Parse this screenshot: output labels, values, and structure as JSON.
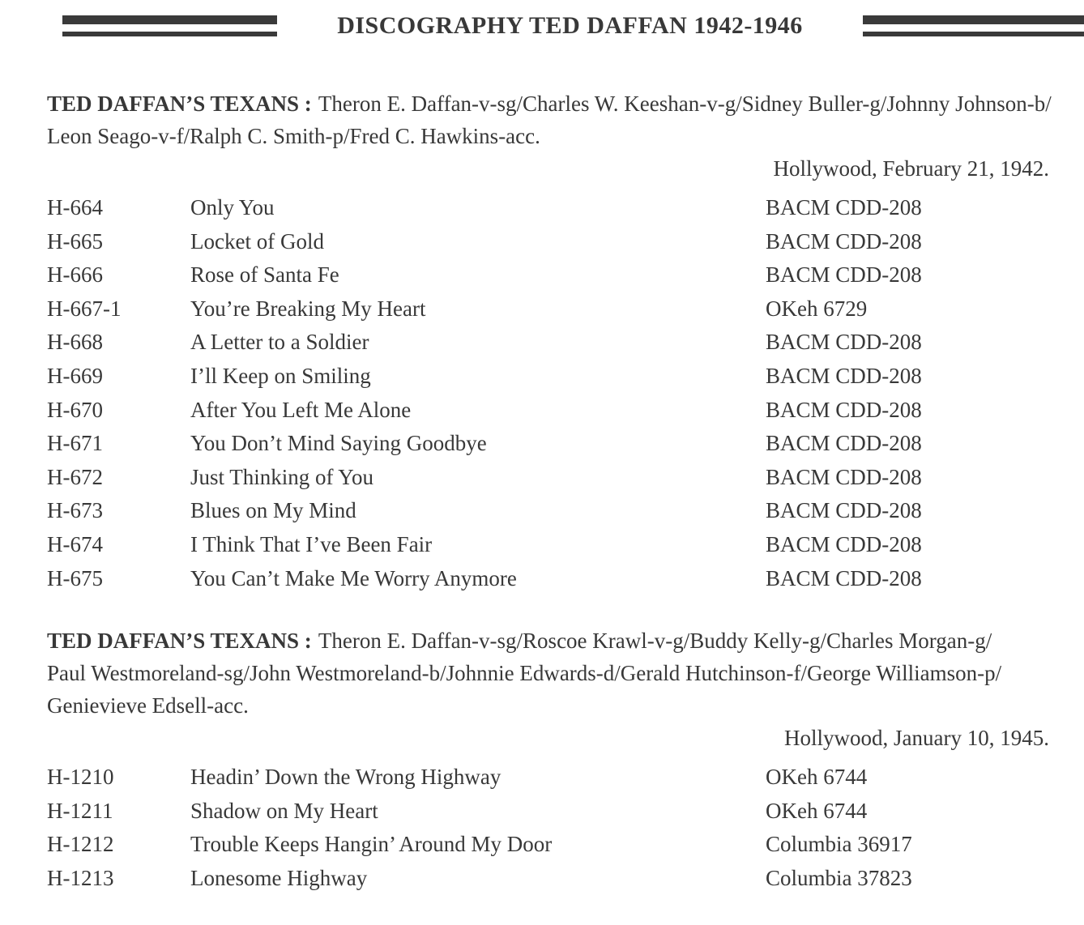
{
  "page": {
    "title": "DISCOGRAPHY TED DAFFAN 1942-1946"
  },
  "colors": {
    "text": "#383838",
    "rule": "#3a3a3a",
    "background": "#ffffff"
  },
  "sessions": [
    {
      "artist": "TED DAFFAN’S TEXANS :",
      "personnel_line_1": "Theron E. Daffan-v-sg/Charles W. Keeshan-v-g/Sidney Buller-g/Johnny Johnson-b/",
      "personnel_line_2": "Leon Seago-v-f/Ralph C. Smith-p/Fred C. Hawkins-acc.",
      "session_date": "Hollywood, February 21, 1942.",
      "tracks": [
        {
          "matrix": "H-664",
          "title": "Only You",
          "release": "BACM CDD-208"
        },
        {
          "matrix": "H-665",
          "title": "Locket of Gold",
          "release": "BACM CDD-208"
        },
        {
          "matrix": "H-666",
          "title": "Rose of Santa Fe",
          "release": "BACM CDD-208"
        },
        {
          "matrix": "H-667-1",
          "title": "You’re Breaking My Heart",
          "release": "OKeh 6729"
        },
        {
          "matrix": "H-668",
          "title": "A Letter to a Soldier",
          "release": "BACM CDD-208"
        },
        {
          "matrix": "H-669",
          "title": "I’ll Keep on Smiling",
          "release": "BACM CDD-208"
        },
        {
          "matrix": "H-670",
          "title": "After You Left Me Alone",
          "release": "BACM CDD-208"
        },
        {
          "matrix": "H-671",
          "title": "You Don’t Mind Saying Goodbye",
          "release": "BACM CDD-208"
        },
        {
          "matrix": "H-672",
          "title": "Just Thinking of You",
          "release": "BACM CDD-208"
        },
        {
          "matrix": "H-673",
          "title": "Blues on My Mind",
          "release": "BACM CDD-208"
        },
        {
          "matrix": "H-674",
          "title": "I Think That I’ve Been Fair",
          "release": "BACM CDD-208"
        },
        {
          "matrix": "H-675",
          "title": "You Can’t Make Me Worry Anymore",
          "release": "BACM CDD-208"
        }
      ]
    },
    {
      "artist": "TED DAFFAN’S TEXANS :",
      "personnel_line_1": "Theron E. Daffan-v-sg/Roscoe Krawl-v-g/Buddy Kelly-g/Charles Morgan-g/",
      "personnel_line_2": "Paul Westmoreland-sg/John Westmoreland-b/Johnnie Edwards-d/Gerald Hutchinson-f/George Williamson-p/",
      "personnel_line_3": "Genievieve Edsell-acc.",
      "session_date": "Hollywood, January 10, 1945.",
      "tracks": [
        {
          "matrix": "H-1210",
          "title": "Headin’ Down the Wrong Highway",
          "release": "OKeh 6744"
        },
        {
          "matrix": "H-1211",
          "title": "Shadow on My Heart",
          "release": "OKeh 6744"
        },
        {
          "matrix": "H-1212",
          "title": "Trouble Keeps Hangin’ Around My Door",
          "release": "Columbia 36917"
        },
        {
          "matrix": "H-1213",
          "title": "Lonesome Highway",
          "release": "Columbia 37823"
        }
      ]
    }
  ]
}
